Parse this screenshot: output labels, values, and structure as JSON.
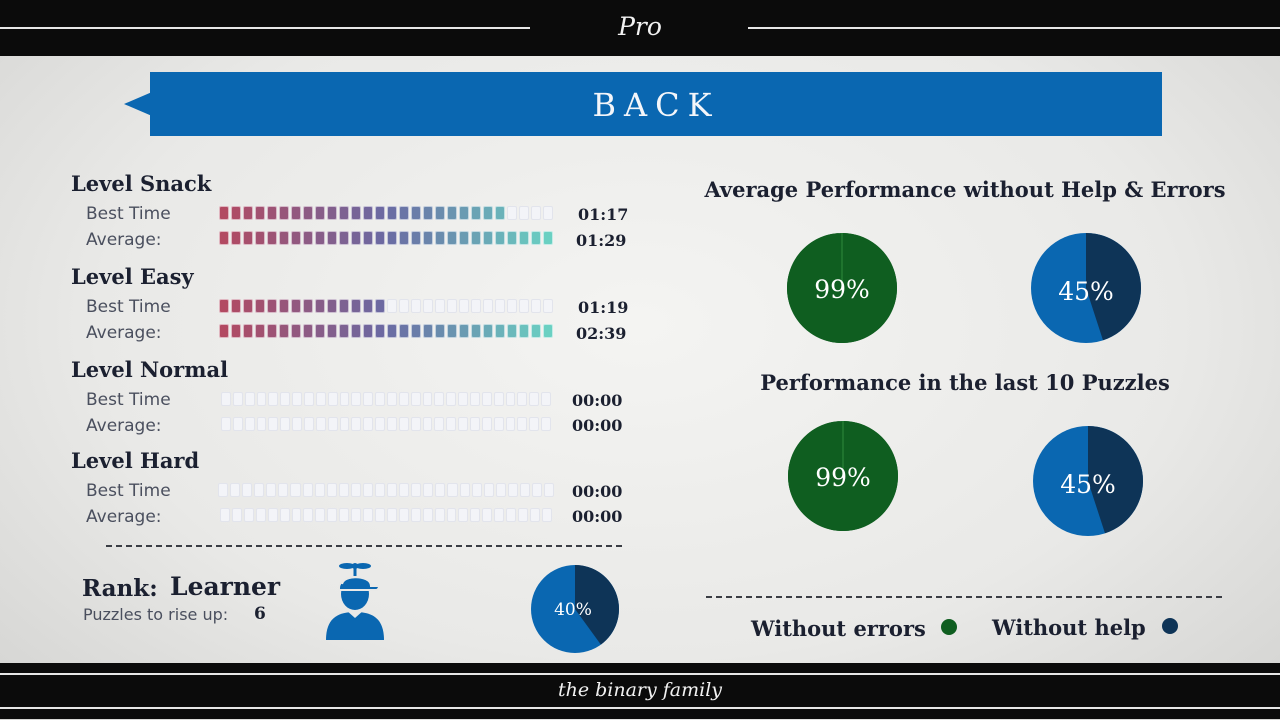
{
  "header": {
    "title": "Pro"
  },
  "footer": {
    "text": "the binary family"
  },
  "back_button": {
    "label": "BACK"
  },
  "levels": [
    {
      "title": "Level Snack",
      "rows": [
        {
          "label": "Best Time",
          "time": "01:17",
          "fill": 0.86
        },
        {
          "label": "Average:",
          "time": "01:29",
          "fill": 1.0
        }
      ]
    },
    {
      "title": "Level Easy",
      "rows": [
        {
          "label": "Best Time",
          "time": "01:19",
          "fill": 0.5
        },
        {
          "label": "Average:",
          "time": "02:39",
          "fill": 1.0
        }
      ]
    },
    {
      "title": "Level Normal",
      "rows": [
        {
          "label": "Best Time",
          "time": "00:00",
          "fill": 0
        },
        {
          "label": "Average:",
          "time": "00:00",
          "fill": 0
        }
      ]
    },
    {
      "title": "Level Hard",
      "rows": [
        {
          "label": "Best Time",
          "time": "00:00",
          "fill": 0
        },
        {
          "label": "Average:",
          "time": "00:00",
          "fill": 0
        }
      ]
    }
  ],
  "rank": {
    "label": "Rank:",
    "value": "Learner",
    "rise_label": "Puzzles to rise up:",
    "rise_value": "6",
    "progress_pct": 40,
    "progress_text": "40%"
  },
  "avg_performance": {
    "title": "Average Performance without Help & Errors",
    "errors_pct": 99,
    "errors_text": "99%",
    "help_pct": 45,
    "help_text": "45%"
  },
  "last10_performance": {
    "title": "Performance in the last 10 Puzzles",
    "errors_pct": 99,
    "errors_text": "99%",
    "help_pct": 45,
    "help_text": "45%"
  },
  "legend": {
    "errors_label": "Without errors",
    "help_label": "Without help"
  },
  "colors": {
    "green": "#0f5e20",
    "blue": "#0a67b1",
    "navy": "#0e3457",
    "bar_start": "#b24a62",
    "bar_mid": "#6a6aa3",
    "bar_end": "#6ad0c2",
    "empty": "#f3f4f8"
  }
}
